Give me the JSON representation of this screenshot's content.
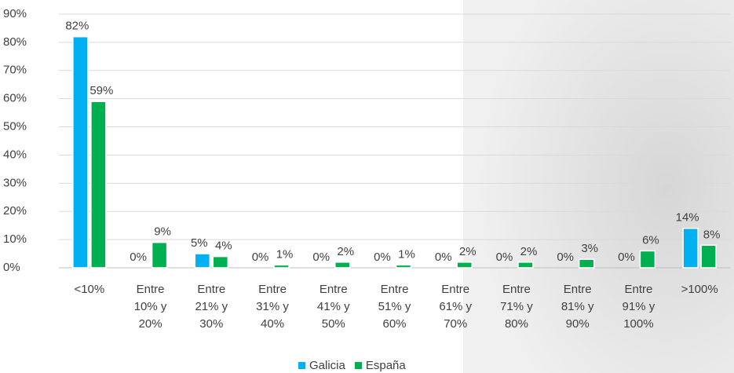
{
  "chart_data": {
    "type": "bar",
    "categories": [
      "<10%",
      "Entre\n10% y\n20%",
      "Entre\n21% y\n30%",
      "Entre\n31% y\n40%",
      "Entre\n41% y\n50%",
      "Entre\n51% y\n60%",
      "Entre\n61% y\n70%",
      "Entre\n71% y\n80%",
      "Entre\n81% y\n90%",
      "Entre\n91% y\n100%",
      ">100%"
    ],
    "series": [
      {
        "name": "Galicia",
        "color": "#00b0f0",
        "values": [
          82,
          0,
          5,
          0,
          0,
          0,
          0,
          0,
          0,
          0,
          14
        ],
        "value_labels": [
          "82%",
          "0%",
          "5%",
          "0%",
          "0%",
          "0%",
          "0%",
          "0%",
          "0%",
          "0%",
          "14%"
        ]
      },
      {
        "name": "España",
        "color": "#00b050",
        "values": [
          59,
          9,
          4,
          1,
          2,
          1,
          2,
          2,
          3,
          6,
          8
        ],
        "value_labels": [
          "59%",
          "9%",
          "4%",
          "1%",
          "2%",
          "1%",
          "2%",
          "2%",
          "3%",
          "6%",
          "8%"
        ]
      }
    ],
    "ylim": [
      0,
      90
    ],
    "yticks": [
      {
        "value": 0,
        "label": "0%"
      },
      {
        "value": 10,
        "label": "10%"
      },
      {
        "value": 20,
        "label": "20%"
      },
      {
        "value": 30,
        "label": "30%"
      },
      {
        "value": 40,
        "label": "40%"
      },
      {
        "value": 50,
        "label": "50%"
      },
      {
        "value": 60,
        "label": "60%"
      },
      {
        "value": 70,
        "label": "70%"
      },
      {
        "value": 80,
        "label": "80%"
      },
      {
        "value": 90,
        "label": "90%"
      }
    ],
    "grid": true
  }
}
